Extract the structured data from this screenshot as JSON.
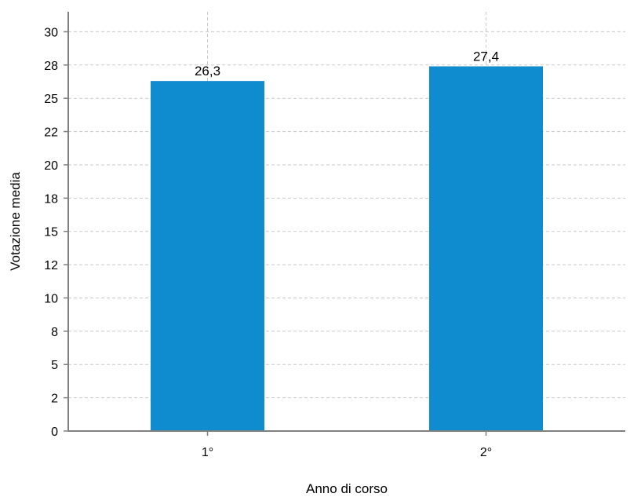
{
  "chart_data": {
    "type": "bar",
    "categories": [
      "1°",
      "2°"
    ],
    "values": [
      26.3,
      27.4
    ],
    "value_labels": [
      "26,3",
      "27,4"
    ],
    "xlabel": "Anno di corso",
    "ylabel": "Votazione media",
    "ylim": [
      0,
      31.5
    ],
    "y_ticks": [
      0,
      2.5,
      5,
      7.5,
      10,
      12.5,
      15,
      17.5,
      20,
      22.5,
      25,
      27.5,
      30
    ],
    "y_tick_labels": [
      "0",
      "2",
      "5",
      "8",
      "10",
      "12",
      "15",
      "18",
      "20",
      "22",
      "25",
      "28",
      "30"
    ],
    "grid": true,
    "bar_color": "#0f8bcf"
  }
}
